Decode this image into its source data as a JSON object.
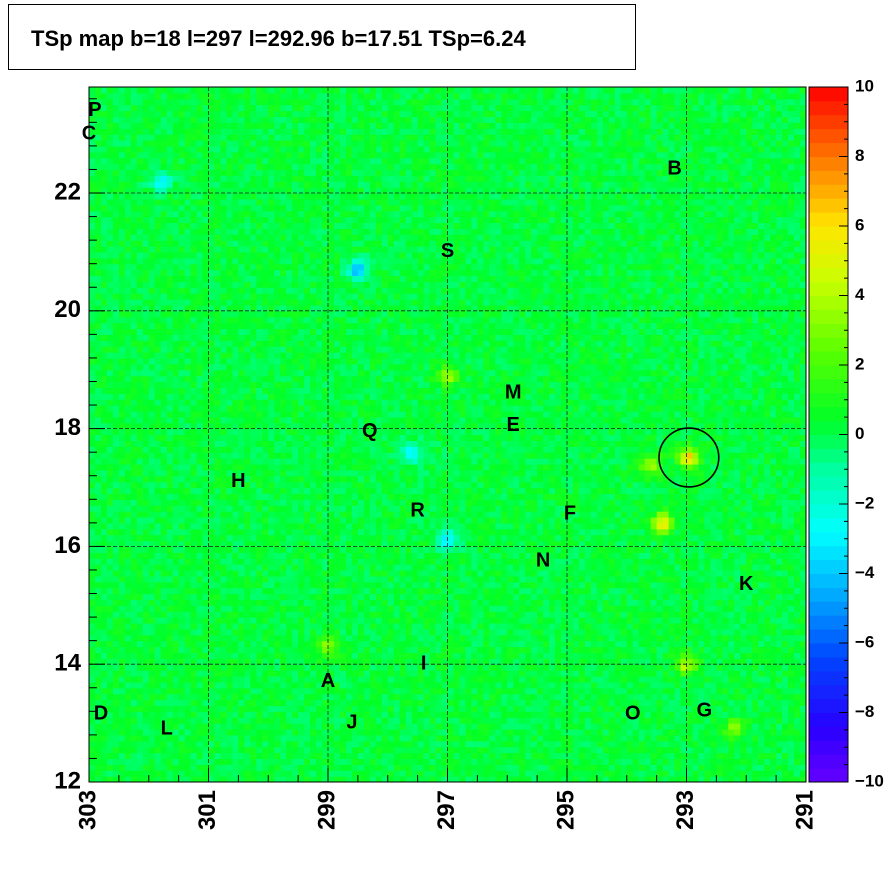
{
  "title": "TSp map b=18 l=297 l=292.96 b=17.51 TSp=6.24",
  "chart_data": {
    "type": "heatmap",
    "title": "TSp map b=18 l=297 l=292.96 b=17.51 TSp=6.24",
    "x_label": "",
    "y_label": "",
    "xlim": [
      303,
      291
    ],
    "ylim": [
      12,
      23.8
    ],
    "x_ticks": [
      "303",
      "301",
      "299",
      "297",
      "295",
      "293",
      "291"
    ],
    "x_tick_values": [
      303,
      301,
      299,
      297,
      295,
      293,
      291
    ],
    "y_ticks": [
      "12",
      "14",
      "16",
      "18",
      "20",
      "22"
    ],
    "y_tick_values": [
      12,
      14,
      16,
      18,
      20,
      22
    ],
    "z_range": [
      -10,
      10
    ],
    "colorbar_ticks": [
      "10",
      "8",
      "6",
      "4",
      "2",
      "0",
      "−2",
      "−4",
      "−6",
      "−8",
      "−10"
    ],
    "colorbar_tick_values": [
      10,
      8,
      6,
      4,
      2,
      0,
      -2,
      -4,
      -6,
      -8,
      -10
    ],
    "circle": {
      "l": 292.96,
      "b": 17.51,
      "radius_deg": 0.5
    },
    "hotspots": [
      {
        "l": 292.96,
        "b": 17.51,
        "value": 6.24
      },
      {
        "l": 293.4,
        "b": 16.4,
        "value": 5.5
      },
      {
        "l": 293.6,
        "b": 17.4,
        "value": 3.5
      },
      {
        "l": 293.0,
        "b": 14.0,
        "value": 4.0
      },
      {
        "l": 297.0,
        "b": 18.9,
        "value": 3.5
      },
      {
        "l": 292.2,
        "b": 12.9,
        "value": 3.0
      },
      {
        "l": 299.0,
        "b": 14.3,
        "value": 3.0
      }
    ],
    "coldspots": [
      {
        "l": 298.5,
        "b": 20.7,
        "value": -4.5
      },
      {
        "l": 297.6,
        "b": 17.6,
        "value": -3.5
      },
      {
        "l": 297.0,
        "b": 16.1,
        "value": -3.5
      },
      {
        "l": 301.8,
        "b": 22.2,
        "value": -3.0
      }
    ],
    "source_labels": [
      {
        "text": "P",
        "l": 302.9,
        "b": 23.4
      },
      {
        "text": "C",
        "l": 303.0,
        "b": 23.0
      },
      {
        "text": "B",
        "l": 293.2,
        "b": 22.4
      },
      {
        "text": "S",
        "l": 297.0,
        "b": 21.0
      },
      {
        "text": "M",
        "l": 295.9,
        "b": 18.6
      },
      {
        "text": "E",
        "l": 295.9,
        "b": 18.05
      },
      {
        "text": "Q",
        "l": 298.3,
        "b": 17.95
      },
      {
        "text": "H",
        "l": 300.5,
        "b": 17.1
      },
      {
        "text": "R",
        "l": 297.5,
        "b": 16.6
      },
      {
        "text": "F",
        "l": 294.95,
        "b": 16.55
      },
      {
        "text": "N",
        "l": 295.4,
        "b": 15.75
      },
      {
        "text": "K",
        "l": 292.0,
        "b": 15.35
      },
      {
        "text": "I",
        "l": 297.4,
        "b": 14.0
      },
      {
        "text": "A",
        "l": 299.0,
        "b": 13.7
      },
      {
        "text": "D",
        "l": 302.8,
        "b": 13.15
      },
      {
        "text": "L",
        "l": 301.7,
        "b": 12.9
      },
      {
        "text": "J",
        "l": 298.6,
        "b": 13.0
      },
      {
        "text": "O",
        "l": 293.9,
        "b": 13.15
      },
      {
        "text": "G",
        "l": 292.7,
        "b": 13.2
      }
    ]
  }
}
